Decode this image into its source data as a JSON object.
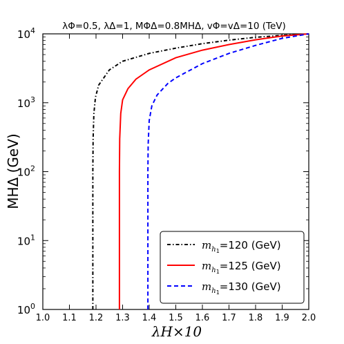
{
  "chart_data": {
    "type": "line",
    "title": "λΦ=0.5, λΔ=1, MΦΔ=0.8MHΔ, vΦ=vΔ=10 (TeV)",
    "xlabel": "λH×10",
    "ylabel": "MHΔ (GeV)",
    "xlim": [
      1.0,
      2.0
    ],
    "ylim": [
      1,
      10000
    ],
    "yscale": "log",
    "x_ticks": [
      "1.0",
      "1.1",
      "1.2",
      "1.3",
      "1.4",
      "1.5",
      "1.6",
      "1.7",
      "1.8",
      "1.9",
      "2.0"
    ],
    "y_ticks": [
      {
        "base": "10",
        "exp": "0",
        "value": 1
      },
      {
        "base": "10",
        "exp": "1",
        "value": 10
      },
      {
        "base": "10",
        "exp": "2",
        "value": 100
      },
      {
        "base": "10",
        "exp": "3",
        "value": 1000
      },
      {
        "base": "10",
        "exp": "4",
        "value": 10000
      }
    ],
    "grid": false,
    "legend_position": "bottom-right",
    "series": [
      {
        "name": "mh1=120 (GeV)",
        "color": "#000000",
        "dash": "dashdot",
        "points": [
          [
            1.188,
            1
          ],
          [
            1.188,
            100
          ],
          [
            1.189,
            300
          ],
          [
            1.192,
            700
          ],
          [
            1.198,
            1200
          ],
          [
            1.21,
            1800
          ],
          [
            1.25,
            3000
          ],
          [
            1.3,
            4000
          ],
          [
            1.4,
            5200
          ],
          [
            1.5,
            6200
          ],
          [
            1.6,
            7200
          ],
          [
            1.7,
            8100
          ],
          [
            1.8,
            8900
          ],
          [
            1.9,
            9500
          ],
          [
            2.0,
            10000
          ]
        ]
      },
      {
        "name": "mh1=125 (GeV)",
        "color": "#ff0000",
        "dash": "solid",
        "points": [
          [
            1.288,
            1
          ],
          [
            1.288,
            100
          ],
          [
            1.289,
            300
          ],
          [
            1.293,
            700
          ],
          [
            1.3,
            1100
          ],
          [
            1.32,
            1600
          ],
          [
            1.35,
            2200
          ],
          [
            1.4,
            3000
          ],
          [
            1.5,
            4500
          ],
          [
            1.6,
            5800
          ],
          [
            1.7,
            7000
          ],
          [
            1.8,
            8200
          ],
          [
            1.9,
            9300
          ],
          [
            2.0,
            10000
          ]
        ]
      },
      {
        "name": "mh1=130 (GeV)",
        "color": "#0000ff",
        "dash": "dashed",
        "points": [
          [
            1.395,
            1
          ],
          [
            1.395,
            100
          ],
          [
            1.396,
            250
          ],
          [
            1.4,
            550
          ],
          [
            1.41,
            900
          ],
          [
            1.43,
            1300
          ],
          [
            1.47,
            1900
          ],
          [
            1.5,
            2300
          ],
          [
            1.6,
            3700
          ],
          [
            1.7,
            5200
          ],
          [
            1.8,
            6800
          ],
          [
            1.9,
            8600
          ],
          [
            2.0,
            10000
          ]
        ]
      }
    ]
  }
}
